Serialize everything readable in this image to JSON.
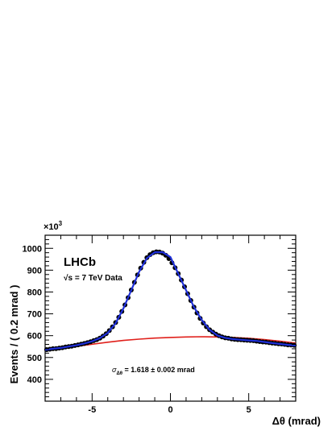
{
  "chart_data": {
    "type": "scatter",
    "xlabel": "Δθ (mrad)",
    "ylabel": "Events / ( 0.2 mrad )",
    "y_multiplier_label": "×10",
    "y_multiplier_exp": "3",
    "xlim": [
      -8,
      8
    ],
    "ylim": [
      300,
      1060
    ],
    "x_ticks": [
      -5,
      0,
      5
    ],
    "y_ticks": [
      400,
      500,
      600,
      700,
      800,
      900,
      1000
    ],
    "grid": false,
    "annotations": {
      "experiment": "LHCb",
      "energy_sqrt": "√s",
      "energy_rest": " = 7 TeV Data",
      "resolution_symbol": "σ",
      "resolution_subscript": "Δθ",
      "resolution_text": " =  1.618  ± 0.002 mrad"
    },
    "series": [
      {
        "kind": "data_points",
        "color": "#000000",
        "x": [
          -7.9,
          -7.7,
          -7.5,
          -7.3,
          -7.1,
          -6.9,
          -6.7,
          -6.5,
          -6.3,
          -6.1,
          -5.9,
          -5.7,
          -5.5,
          -5.3,
          -5.1,
          -4.9,
          -4.7,
          -4.5,
          -4.3,
          -4.1,
          -3.9,
          -3.7,
          -3.5,
          -3.3,
          -3.1,
          -2.9,
          -2.7,
          -2.5,
          -2.3,
          -2.1,
          -1.9,
          -1.7,
          -1.5,
          -1.3,
          -1.1,
          -0.9,
          -0.7,
          -0.5,
          -0.3,
          -0.1,
          0.1,
          0.3,
          0.5,
          0.7,
          0.9,
          1.1,
          1.3,
          1.5,
          1.7,
          1.9,
          2.1,
          2.3,
          2.5,
          2.7,
          2.9,
          3.1,
          3.3,
          3.5,
          3.7,
          3.9,
          4.1,
          4.3,
          4.5,
          4.7,
          4.9,
          5.1,
          5.3,
          5.5,
          5.7,
          5.9,
          6.1,
          6.3,
          6.5,
          6.7,
          6.9,
          7.1,
          7.3,
          7.5,
          7.7,
          7.9
        ],
        "y": [
          536,
          538,
          540,
          541,
          543,
          545,
          548,
          550,
          552,
          555,
          558,
          561,
          564,
          568,
          572,
          577,
          582,
          589,
          598,
          609,
          623,
          640,
          660,
          684,
          711,
          741,
          774,
          809,
          844,
          878,
          909,
          936,
          957,
          971,
          980,
          984,
          983,
          978,
          968,
          953,
          934,
          911,
          884,
          855,
          824,
          792,
          761,
          731,
          704,
          679,
          658,
          641,
          627,
          616,
          607,
          600,
          594,
          590,
          588,
          585,
          583,
          582,
          581,
          580,
          579,
          578,
          577,
          575,
          573,
          571,
          570,
          568,
          566,
          565,
          563,
          562,
          560,
          558,
          557,
          556
        ]
      },
      {
        "kind": "fit_total",
        "color": "#1f2fd8",
        "x": [
          -8,
          -7.5,
          -7,
          -6.5,
          -6,
          -5.5,
          -5,
          -4.5,
          -4,
          -3.5,
          -3,
          -2.5,
          -2,
          -1.5,
          -1,
          -0.5,
          0,
          0.5,
          1,
          1.5,
          2,
          2.5,
          3,
          3.5,
          4,
          4.5,
          5,
          5.5,
          6,
          6.5,
          7,
          7.5,
          8
        ],
        "y": [
          535,
          540,
          544,
          550,
          556,
          564,
          574,
          589,
          613,
          657,
          725,
          808,
          892,
          955,
          982,
          982,
          960,
          884,
          808,
          731,
          672,
          627,
          601,
          590,
          584,
          581,
          578,
          576,
          571,
          566,
          562,
          558,
          555
        ]
      },
      {
        "kind": "fit_background",
        "color": "#e0201b",
        "x": [
          -8,
          -7,
          -6,
          -5,
          -4,
          -3,
          -2,
          -1,
          0,
          1,
          2,
          3,
          4,
          5,
          6,
          7,
          8
        ],
        "y": [
          531,
          541,
          551,
          561,
          570,
          578,
          584,
          589,
          592,
          594,
          595,
          594,
          592,
          588,
          582,
          575,
          566
        ]
      }
    ]
  }
}
